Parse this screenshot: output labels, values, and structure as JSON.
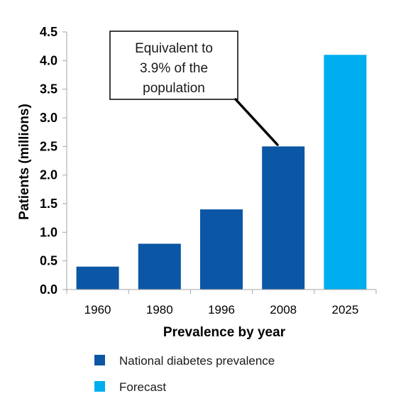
{
  "chart_data": {
    "type": "bar",
    "categories": [
      "1960",
      "1980",
      "1996",
      "2008",
      "2025"
    ],
    "values": [
      0.4,
      0.8,
      1.4,
      2.5,
      4.1
    ],
    "bar_series": [
      "National diabetes prevalence",
      "National diabetes prevalence",
      "National diabetes prevalence",
      "National diabetes prevalence",
      "Forecast"
    ],
    "xlabel": "Prevalence by year",
    "ylabel": "Patients (millions)",
    "ylim": [
      0,
      4.5
    ],
    "yticks": [
      "0.0",
      "0.5",
      "1.0",
      "1.5",
      "2.0",
      "2.5",
      "3.0",
      "3.5",
      "4.0",
      "4.5"
    ],
    "grid": false,
    "legend": {
      "placement": "bottom",
      "entries": [
        {
          "label": "National diabetes prevalence",
          "color": "#0B56A5"
        },
        {
          "label": "Forecast",
          "color": "#00AEEF"
        }
      ]
    },
    "annotation": {
      "target_category": "2008",
      "lines": [
        "Equivalent to",
        "3.9% of the",
        "population"
      ]
    },
    "colors": {
      "actual": "#0B56A5",
      "forecast": "#00AEEF",
      "axis": "#a6a6a6"
    }
  }
}
